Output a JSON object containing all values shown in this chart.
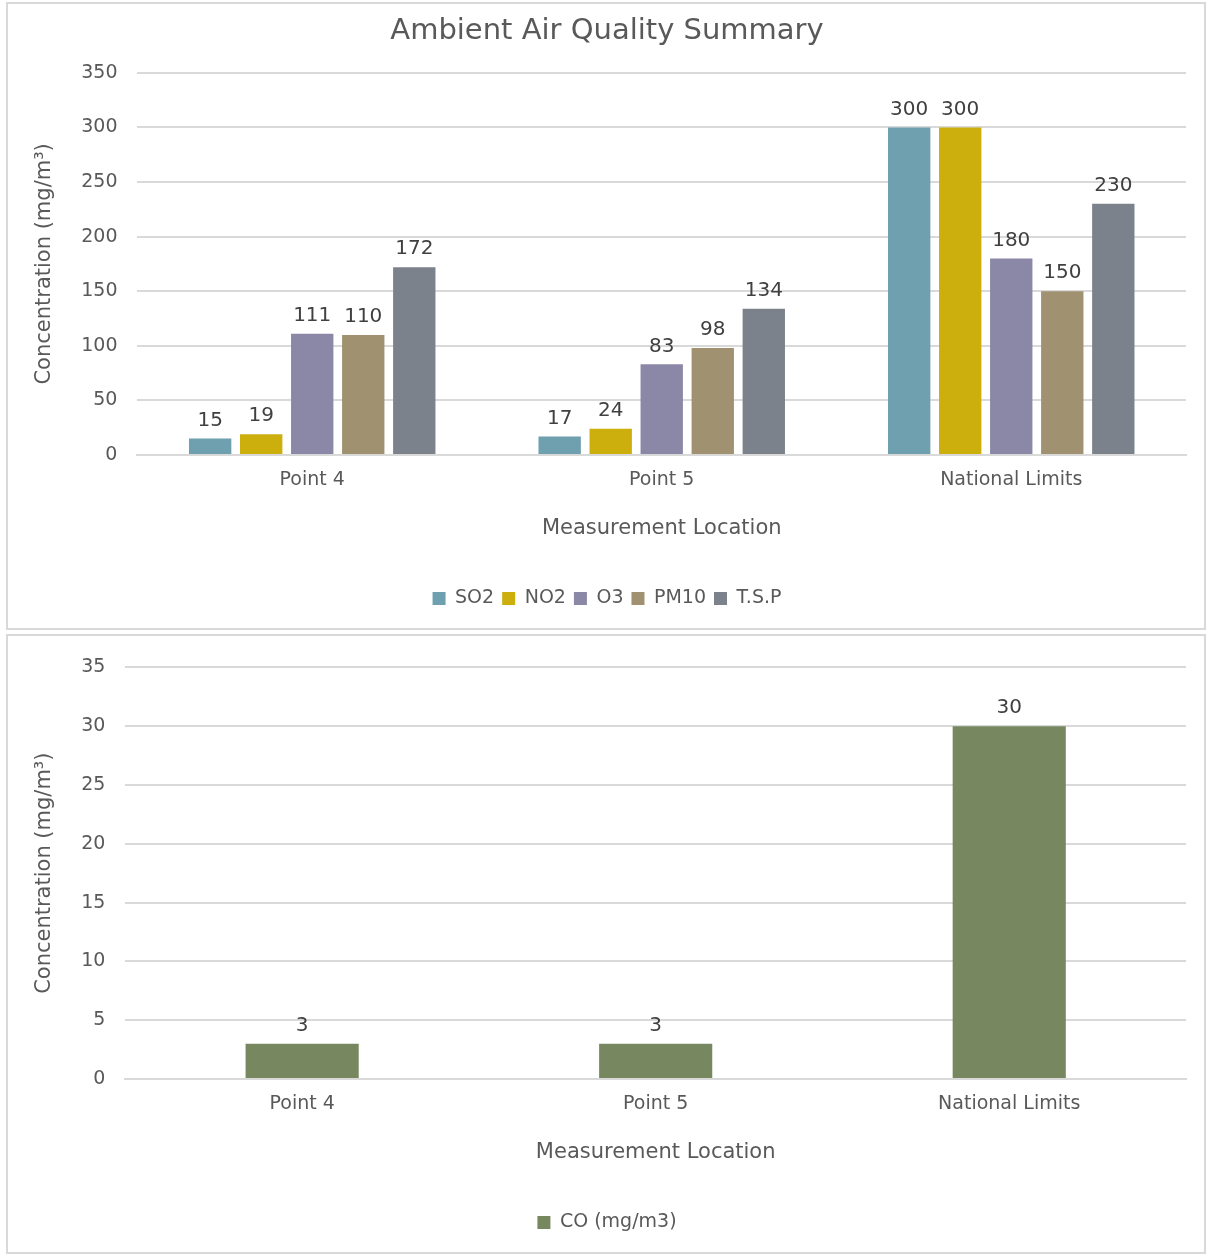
{
  "chart_data": [
    {
      "type": "bar",
      "title": "Ambient Air Quality Summary",
      "xlabel": "Measurement Location",
      "ylabel": "Concentration (mg/m³)",
      "categories": [
        "Point 4",
        "Point 5",
        "National Limits"
      ],
      "series": [
        {
          "name": "SO2",
          "color": "#6fa0b0",
          "values": [
            15,
            17,
            300
          ]
        },
        {
          "name": "NO2",
          "color": "#ccae0c",
          "values": [
            19,
            24,
            300
          ]
        },
        {
          "name": "O3",
          "color": "#8b87a6",
          "values": [
            111,
            83,
            180
          ]
        },
        {
          "name": "PM10",
          "color": "#a09270",
          "values": [
            110,
            98,
            150
          ]
        },
        {
          "name": "T.S.P",
          "color": "#7b828b",
          "values": [
            172,
            134,
            230
          ]
        }
      ],
      "ylim": [
        0,
        350
      ],
      "yticks": [
        0,
        50,
        100,
        150,
        200,
        250,
        300,
        350
      ],
      "grid": "y",
      "legend": "bottom",
      "data_labels": true
    },
    {
      "type": "bar",
      "xlabel": "Measurement Location",
      "ylabel": "Concentration (mg/m³)",
      "categories": [
        "Point 4",
        "Point 5",
        "National Limits"
      ],
      "series": [
        {
          "name": "CO (mg/m3)",
          "color": "#77875f",
          "values": [
            3,
            3,
            30
          ]
        }
      ],
      "ylim": [
        0,
        35
      ],
      "yticks": [
        0,
        5,
        10,
        15,
        20,
        25,
        30,
        35
      ],
      "grid": "y",
      "legend": "bottom",
      "data_labels": true
    }
  ]
}
